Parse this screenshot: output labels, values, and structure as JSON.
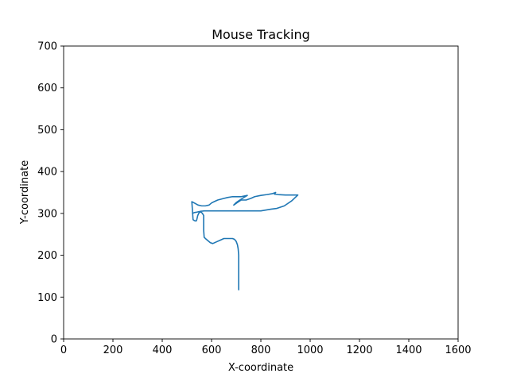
{
  "chart_data": {
    "type": "line",
    "title": "Mouse Tracking",
    "xlabel": "X-coordinate",
    "ylabel": "Y-coordinate",
    "xlim": [
      0,
      1600
    ],
    "ylim": [
      0,
      700
    ],
    "xticks": [
      0,
      200,
      400,
      600,
      800,
      1000,
      1200,
      1400,
      1600
    ],
    "yticks": [
      0,
      100,
      200,
      300,
      400,
      500,
      600,
      700
    ],
    "grid": false,
    "color": "#1f77b4",
    "series": [
      {
        "x": [
          710,
          710,
          708,
          705,
          700,
          693,
          685,
          670,
          650,
          635,
          620,
          605,
          595,
          585,
          575,
          570,
          568,
          568,
          568,
          565,
          560,
          553,
          548,
          544,
          542,
          540,
          538,
          535,
          530,
          525,
          520,
          530,
          545,
          560,
          575,
          590,
          600,
          610,
          625,
          645,
          665,
          685,
          700,
          720,
          745,
          725,
          710,
          700,
          690,
          705,
          720,
          740,
          760,
          775,
          800,
          825,
          845,
          860,
          855,
          870,
          900,
          935,
          950,
          925,
          895,
          865,
          840,
          800,
          760,
          700,
          640,
          590,
          570,
          555,
          540,
          530,
          523
        ],
        "y": [
          118,
          200,
          215,
          225,
          233,
          238,
          240,
          240,
          240,
          236,
          232,
          228,
          230,
          235,
          240,
          243,
          260,
          278,
          295,
          298,
          302,
          304,
          300,
          295,
          290,
          285,
          282,
          282,
          283,
          285,
          328,
          325,
          320,
          318,
          318,
          320,
          325,
          328,
          332,
          335,
          338,
          340,
          340,
          340,
          343,
          336,
          330,
          326,
          320,
          326,
          332,
          332,
          336,
          340,
          343,
          345,
          347,
          350,
          346,
          345,
          344,
          344,
          344,
          330,
          318,
          312,
          310,
          306,
          306,
          306,
          306,
          306,
          306,
          305,
          303,
          302,
          300
        ]
      }
    ]
  }
}
